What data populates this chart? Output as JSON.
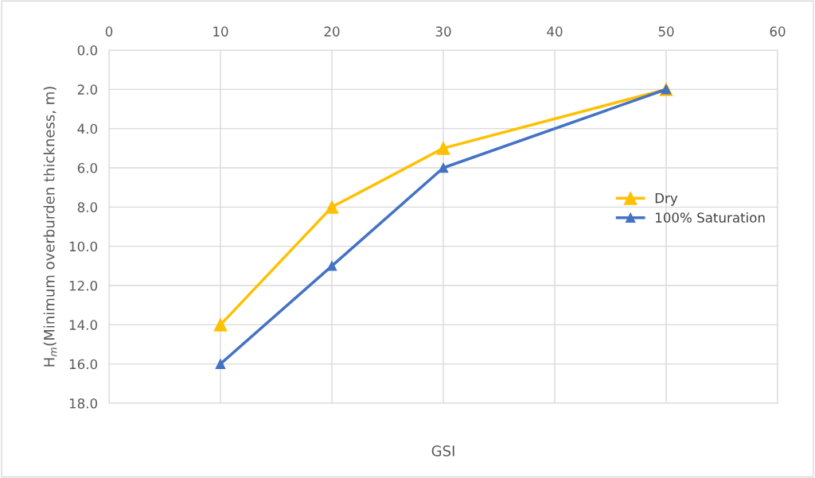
{
  "chart_data": {
    "type": "line",
    "xlabel": "GSI",
    "ylabel": "H$_{m}$(Minimum overburden thickness, m)",
    "xlim": [
      0,
      60
    ],
    "xticks": [
      0,
      10,
      20,
      30,
      40,
      50,
      60
    ],
    "ylim": [
      18,
      0
    ],
    "yticks": [
      {
        "value": 0,
        "label": "0.0"
      },
      {
        "value": 2,
        "label": "2.0"
      },
      {
        "value": 4,
        "label": "4.0"
      },
      {
        "value": 6,
        "label": "6.0"
      },
      {
        "value": 8,
        "label": "8.0"
      },
      {
        "value": 10,
        "label": "10.0"
      },
      {
        "value": 12,
        "label": "12.0"
      },
      {
        "value": 14,
        "label": "14.0"
      },
      {
        "value": 16,
        "label": "16.0"
      },
      {
        "value": 18,
        "label": "18.0"
      }
    ],
    "x": [
      10,
      20,
      30,
      50
    ],
    "series": [
      {
        "name": "Dry",
        "color": "#ffc000",
        "values": [
          14,
          8,
          5,
          2
        ]
      },
      {
        "name": "100% Saturation",
        "color": "#4472c4",
        "values": [
          16,
          11,
          6,
          2
        ]
      }
    ],
    "marker": "triangle",
    "line_style": "solid",
    "grid": true,
    "legend": "center right"
  }
}
